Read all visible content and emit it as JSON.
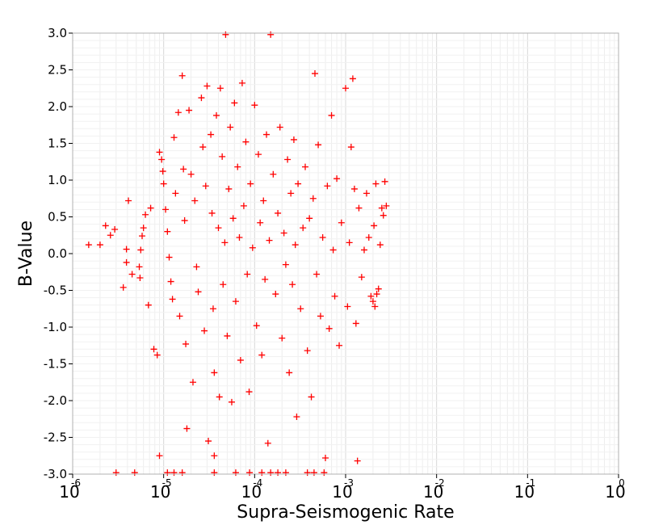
{
  "chart_data": {
    "type": "scatter",
    "xlabel": "Supra-Seismogenic Rate",
    "ylabel": "B-Value",
    "x_scale": "log",
    "xlim": [
      1e-06,
      1
    ],
    "ylim": [
      -3.0,
      3.0
    ],
    "y_ticks": [
      "3.0",
      "2.5",
      "2.0",
      "1.5",
      "1.0",
      "0.5",
      "0.0",
      "-0.5",
      "-1.0",
      "-1.5",
      "-2.0",
      "-2.5",
      "-3.0"
    ],
    "x_ticks": [
      {
        "base": "10",
        "exp": "-6"
      },
      {
        "base": "10",
        "exp": "-5"
      },
      {
        "base": "10",
        "exp": "-4"
      },
      {
        "base": "10",
        "exp": "-3"
      },
      {
        "base": "10",
        "exp": "-2"
      },
      {
        "base": "10",
        "exp": "-1"
      },
      {
        "base": "10",
        "exp": "0"
      }
    ],
    "grid": true,
    "marker": "plus",
    "color": "#ff0000",
    "series": [
      {
        "points": [
          [
            1.5e-06,
            0.12
          ],
          [
            2e-06,
            0.12
          ],
          [
            2.3e-06,
            0.38
          ],
          [
            2.6e-06,
            0.25
          ],
          [
            2.9e-06,
            0.33
          ],
          [
            3.6e-06,
            -0.46
          ],
          [
            3.9e-06,
            0.06
          ],
          [
            4.1e-06,
            0.72
          ],
          [
            3.9e-06,
            -0.12
          ],
          [
            4.5e-06,
            -0.28
          ],
          [
            5.4e-06,
            -0.18
          ],
          [
            5.5e-06,
            -0.33
          ],
          [
            5.8e-06,
            0.24
          ],
          [
            6e-06,
            0.35
          ],
          [
            6.3e-06,
            0.53
          ],
          [
            5.6e-06,
            0.05
          ],
          [
            6.8e-06,
            -0.7
          ],
          [
            7.2e-06,
            0.62
          ],
          [
            7.8e-06,
            -1.3
          ],
          [
            8.5e-06,
            -1.38
          ],
          [
            9e-06,
            1.38
          ],
          [
            9.5e-06,
            1.28
          ],
          [
            9.8e-06,
            1.12
          ],
          [
            1e-05,
            0.95
          ],
          [
            1.05e-05,
            0.6
          ],
          [
            1.1e-05,
            0.3
          ],
          [
            1.15e-05,
            -0.05
          ],
          [
            1.2e-05,
            -0.38
          ],
          [
            1.25e-05,
            -0.62
          ],
          [
            1.3e-05,
            1.58
          ],
          [
            1.35e-05,
            0.82
          ],
          [
            1.45e-05,
            1.92
          ],
          [
            1.5e-05,
            -0.85
          ],
          [
            1.6e-05,
            2.42
          ],
          [
            1.65e-05,
            1.15
          ],
          [
            1.7e-05,
            0.45
          ],
          [
            1.75e-05,
            -1.23
          ],
          [
            1.8e-05,
            -2.38
          ],
          [
            1.9e-05,
            1.95
          ],
          [
            2e-05,
            1.08
          ],
          [
            2.1e-05,
            -1.75
          ],
          [
            2.2e-05,
            0.72
          ],
          [
            2.3e-05,
            -0.18
          ],
          [
            2.4e-05,
            -0.52
          ],
          [
            2.6e-05,
            2.12
          ],
          [
            2.7e-05,
            1.45
          ],
          [
            2.8e-05,
            -1.05
          ],
          [
            2.9e-05,
            0.92
          ],
          [
            3e-05,
            2.28
          ],
          [
            3.1e-05,
            -2.55
          ],
          [
            3.3e-05,
            1.62
          ],
          [
            3.4e-05,
            0.55
          ],
          [
            3.5e-05,
            -0.75
          ],
          [
            3.6e-05,
            -1.62
          ],
          [
            3.8e-05,
            1.88
          ],
          [
            4e-05,
            0.35
          ],
          [
            4.1e-05,
            -1.95
          ],
          [
            4.2e-05,
            2.25
          ],
          [
            4.4e-05,
            1.32
          ],
          [
            4.5e-05,
            -0.42
          ],
          [
            4.7e-05,
            0.15
          ],
          [
            4.8e-05,
            2.98
          ],
          [
            5e-05,
            -1.12
          ],
          [
            5.2e-05,
            0.88
          ],
          [
            5.4e-05,
            1.72
          ],
          [
            5.6e-05,
            -2.02
          ],
          [
            5.8e-05,
            0.48
          ],
          [
            6e-05,
            2.05
          ],
          [
            6.2e-05,
            -0.65
          ],
          [
            6.5e-05,
            1.18
          ],
          [
            6.8e-05,
            0.22
          ],
          [
            7e-05,
            -1.45
          ],
          [
            7.3e-05,
            2.32
          ],
          [
            7.6e-05,
            0.65
          ],
          [
            8e-05,
            1.52
          ],
          [
            8.3e-05,
            -0.28
          ],
          [
            8.7e-05,
            -1.88
          ],
          [
            9e-05,
            0.95
          ],
          [
            9.5e-05,
            0.08
          ],
          [
            0.0001,
            2.02
          ],
          [
            0.000105,
            -0.98
          ],
          [
            0.00011,
            1.35
          ],
          [
            0.000115,
            0.42
          ],
          [
            0.00012,
            -1.38
          ],
          [
            0.000125,
            0.72
          ],
          [
            0.00013,
            -0.35
          ],
          [
            0.000135,
            1.62
          ],
          [
            0.00014,
            -2.58
          ],
          [
            0.000145,
            0.18
          ],
          [
            0.00015,
            2.98
          ],
          [
            0.00016,
            1.08
          ],
          [
            0.00017,
            -0.55
          ],
          [
            0.00018,
            0.55
          ],
          [
            0.00019,
            1.72
          ],
          [
            0.0002,
            -1.15
          ],
          [
            0.00021,
            0.28
          ],
          [
            0.00022,
            -0.15
          ],
          [
            0.00023,
            1.28
          ],
          [
            0.00024,
            -1.62
          ],
          [
            0.00025,
            0.82
          ],
          [
            0.00026,
            -0.42
          ],
          [
            0.00027,
            1.55
          ],
          [
            0.00028,
            0.12
          ],
          [
            0.00029,
            -2.22
          ],
          [
            0.0003,
            0.95
          ],
          [
            0.00032,
            -0.75
          ],
          [
            0.00034,
            0.35
          ],
          [
            0.00036,
            1.18
          ],
          [
            0.00038,
            -1.32
          ],
          [
            0.0004,
            0.48
          ],
          [
            0.00042,
            -1.95
          ],
          [
            0.00044,
            0.75
          ],
          [
            0.00046,
            2.45
          ],
          [
            0.00048,
            -0.28
          ],
          [
            0.0005,
            1.48
          ],
          [
            0.00053,
            -0.85
          ],
          [
            0.00056,
            0.22
          ],
          [
            0.0006,
            -2.78
          ],
          [
            0.00063,
            0.92
          ],
          [
            0.00066,
            -1.02
          ],
          [
            0.0007,
            1.88
          ],
          [
            0.00073,
            0.05
          ],
          [
            0.00076,
            -0.58
          ],
          [
            0.0008,
            1.02
          ],
          [
            0.00085,
            -1.25
          ],
          [
            0.0009,
            0.42
          ],
          [
            0.001,
            2.25
          ],
          [
            0.00105,
            -0.72
          ],
          [
            0.0011,
            0.15
          ],
          [
            0.00115,
            1.45
          ],
          [
            0.0012,
            2.38
          ],
          [
            0.00125,
            0.88
          ],
          [
            0.0013,
            -0.95
          ],
          [
            0.00135,
            -2.82
          ],
          [
            0.0014,
            0.62
          ],
          [
            0.0015,
            -0.32
          ],
          [
            0.0016,
            0.05
          ],
          [
            0.0017,
            0.82
          ],
          [
            0.0018,
            0.22
          ],
          [
            0.0019,
            -0.58
          ],
          [
            0.002,
            -0.65
          ],
          [
            0.00205,
            0.38
          ],
          [
            0.0021,
            -0.72
          ],
          [
            0.00215,
            0.95
          ],
          [
            0.0022,
            -0.55
          ],
          [
            0.0023,
            -0.48
          ],
          [
            0.0024,
            0.12
          ],
          [
            0.0025,
            0.62
          ],
          [
            0.0026,
            0.52
          ],
          [
            0.0027,
            0.98
          ],
          [
            0.0028,
            0.65
          ],
          [
            1.6e-05,
            -2.98
          ],
          [
            3e-06,
            -2.98
          ],
          [
            4.8e-06,
            -2.98
          ],
          [
            1.1e-05,
            -2.98
          ],
          [
            1.3e-05,
            -2.98
          ],
          [
            3.6e-05,
            -2.98
          ],
          [
            6.2e-05,
            -2.98
          ],
          [
            8.8e-05,
            -2.98
          ],
          [
            0.00012,
            -2.98
          ],
          [
            0.00015,
            -2.98
          ],
          [
            0.00018,
            -2.98
          ],
          [
            0.00022,
            -2.98
          ],
          [
            0.00038,
            -2.98
          ],
          [
            0.00045,
            -2.98
          ],
          [
            0.00058,
            -2.98
          ],
          [
            3.6e-05,
            -2.75
          ],
          [
            9e-06,
            -2.75
          ]
        ]
      }
    ]
  }
}
